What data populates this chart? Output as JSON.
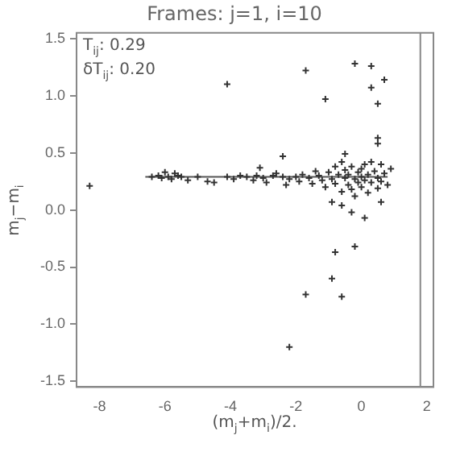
{
  "chart_data": {
    "type": "scatter",
    "title": "Frames: j=1, i=10",
    "xlabel": "(m$_{j}$+m$_{i}$)/2.",
    "ylabel": "m$_{j}$−m$_{i}$",
    "annotations": [
      "T$_{ij}$:  0.29",
      "δT$_{ij}$:  0.20"
    ],
    "xlim": [
      -8.7,
      2.2
    ],
    "xticks": [
      -8,
      -6,
      -4,
      -2,
      0,
      2
    ],
    "ylim": [
      -1.55,
      1.55
    ],
    "yticks": [
      {
        "value": -1.5,
        "label": "-1.5"
      },
      {
        "value": -1,
        "label": "-1.0"
      },
      {
        "value": -0.5,
        "label": "-0.5"
      },
      {
        "value": 0,
        "label": "0.0"
      },
      {
        "value": 0.5,
        "label": "0.5"
      },
      {
        "value": 1,
        "label": "1.0"
      },
      {
        "value": 1.5,
        "label": "1.5"
      }
    ],
    "grid": false,
    "marker": "cross",
    "ref_lines": [
      {
        "axis": "x",
        "value": 1.8,
        "color": "#888888"
      }
    ],
    "series": [
      {
        "color": "#333333",
        "x": [
          -8.3,
          -6.0,
          -5.7,
          -4.1,
          -3.1,
          -1.7,
          -1.1,
          -0.2,
          0.3,
          0.7,
          0.3,
          0.5,
          0.5,
          0.5,
          -0.3,
          0.1,
          -0.2,
          -0.8,
          -0.9,
          -1.7,
          -0.6,
          -2.2,
          -0.6,
          0.6,
          -6.4,
          -6.2,
          -6.1,
          -5.9,
          -5.8,
          -5.6,
          -5.5,
          -5.3,
          -5.0,
          -4.7,
          -4.5,
          -4.1,
          -3.9,
          -3.7,
          -3.5,
          -3.3,
          -3.2,
          -3.0,
          -2.9,
          -2.7,
          -2.6,
          -2.4,
          -2.3,
          -2.2,
          -2.0,
          -1.9,
          -1.8,
          -1.6,
          -1.5,
          -1.4,
          -1.3,
          -1.2,
          -1.1,
          -1.0,
          -0.9,
          -0.8,
          -0.8,
          -0.7,
          -0.6,
          -0.6,
          -0.5,
          -0.5,
          -0.4,
          -0.4,
          -0.3,
          -0.3,
          -0.2,
          -0.2,
          -0.1,
          -0.1,
          0.0,
          0.0,
          0.0,
          0.1,
          0.1,
          0.2,
          0.2,
          0.3,
          0.3,
          0.4,
          0.5,
          0.5,
          0.6,
          0.6,
          0.7,
          0.8,
          0.9,
          -0.5,
          -2.4,
          -0.9
        ],
        "values": [
          0.21,
          0.33,
          0.32,
          1.1,
          0.37,
          1.22,
          0.97,
          1.28,
          1.26,
          1.14,
          1.07,
          0.93,
          0.63,
          0.58,
          -0.02,
          -0.07,
          -0.32,
          -0.37,
          -0.6,
          -0.74,
          -0.76,
          -1.2,
          0.04,
          0.07,
          0.29,
          0.3,
          0.28,
          0.29,
          0.27,
          0.3,
          0.29,
          0.26,
          0.29,
          0.25,
          0.24,
          0.29,
          0.27,
          0.3,
          0.29,
          0.26,
          0.3,
          0.28,
          0.24,
          0.3,
          0.32,
          0.29,
          0.22,
          0.27,
          0.29,
          0.25,
          0.31,
          0.28,
          0.23,
          0.34,
          0.3,
          0.26,
          0.2,
          0.33,
          0.27,
          0.38,
          0.23,
          0.31,
          0.16,
          0.42,
          0.28,
          0.35,
          0.22,
          0.31,
          0.18,
          0.38,
          0.27,
          0.12,
          0.33,
          0.24,
          0.36,
          0.29,
          0.2,
          0.4,
          0.26,
          0.31,
          0.15,
          0.42,
          0.24,
          0.34,
          0.28,
          0.19,
          0.4,
          0.25,
          0.32,
          0.22,
          0.36,
          0.49,
          0.47,
          0.07
        ]
      },
      {
        "type": "line",
        "color": "#555555",
        "marker": "none",
        "x": [
          -6.6,
          0.8
        ],
        "values": [
          0.29,
          0.29
        ]
      }
    ]
  }
}
